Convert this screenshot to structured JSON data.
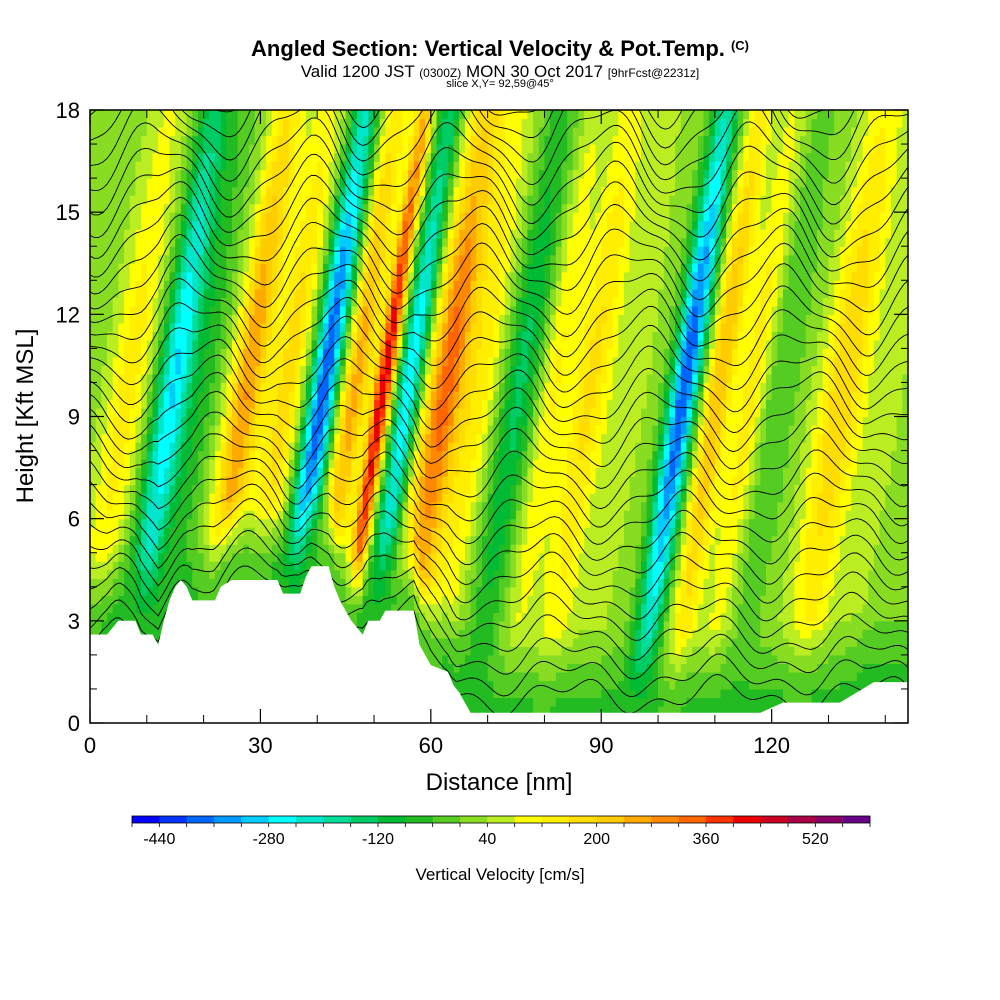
{
  "header": {
    "title": "Angled Section: Vertical Velocity & Pot.Temp.",
    "title_tag": "(C)",
    "valid_prefix": "Valid 1200 JST",
    "valid_utc": "(0300Z)",
    "valid_date": "MON 30 Oct 2017",
    "forecast_tag": "[9hrFcst@2231z]",
    "slice_text": "slice X,Y= 92,59@45°"
  },
  "chart_data": {
    "type": "heatmap",
    "xlabel": "Distance [nm]",
    "ylabel": "Height [Kft MSL]",
    "xlim": [
      0,
      144
    ],
    "ylim": [
      0,
      18
    ],
    "x_ticks": [
      0,
      30,
      60,
      90,
      120
    ],
    "y_ticks": [
      0,
      3,
      6,
      9,
      12,
      15,
      18
    ],
    "colorbar": {
      "title": "Vertical Velocity [cm/s]",
      "min": -480,
      "max": 600,
      "step": 40,
      "tick_values": [
        -440,
        -280,
        -120,
        40,
        200,
        360,
        520
      ],
      "colors": [
        "#0000ff",
        "#0033ff",
        "#0066ff",
        "#0099ff",
        "#00ccff",
        "#00ffff",
        "#00e6cc",
        "#00dd99",
        "#00cc66",
        "#00bb33",
        "#22bb22",
        "#55cc22",
        "#88dd22",
        "#bbee22",
        "#ffff00",
        "#ffee00",
        "#ffdd00",
        "#ffcc00",
        "#ffaa00",
        "#ff8800",
        "#ff6600",
        "#ff3300",
        "#ee0000",
        "#cc0022",
        "#aa0044",
        "#880066",
        "#660088"
      ]
    },
    "velocity_bands": [
      {
        "x": 5,
        "w": 3.5,
        "a": 120
      },
      {
        "x": 13,
        "w": 3,
        "a": -300
      },
      {
        "x": 18,
        "w": 3,
        "a": -80
      },
      {
        "x": 26,
        "w": 3,
        "a": 260
      },
      {
        "x": 33,
        "w": 3,
        "a": 160
      },
      {
        "x": 39.5,
        "w": 2.5,
        "a": -420
      },
      {
        "x": 45,
        "w": 2.5,
        "a": 240
      },
      {
        "x": 50,
        "w": 1.6,
        "a": 420
      },
      {
        "x": 54.5,
        "w": 2.2,
        "a": -300
      },
      {
        "x": 61,
        "w": 3.5,
        "a": 320
      },
      {
        "x": 67,
        "w": 3,
        "a": 110
      },
      {
        "x": 74,
        "w": 3,
        "a": -150
      },
      {
        "x": 80,
        "w": 2.5,
        "a": 100
      },
      {
        "x": 86.5,
        "w": 3.5,
        "a": 150
      },
      {
        "x": 94,
        "w": 3,
        "a": 40
      },
      {
        "x": 103,
        "w": 2.5,
        "a": -420
      },
      {
        "x": 109,
        "w": 2.5,
        "a": 220
      },
      {
        "x": 115,
        "w": 2.5,
        "a": 120
      },
      {
        "x": 120,
        "w": 3,
        "a": -60
      },
      {
        "x": 131,
        "w": 4,
        "a": 180
      },
      {
        "x": 139,
        "w": 3,
        "a": 40
      }
    ],
    "terrain": [
      [
        0,
        2.6
      ],
      [
        3,
        2.6
      ],
      [
        5,
        3.0
      ],
      [
        8,
        3.0
      ],
      [
        9,
        2.6
      ],
      [
        11,
        2.6
      ],
      [
        12,
        2.3
      ],
      [
        13,
        3.0
      ],
      [
        14,
        3.6
      ],
      [
        15,
        4.0
      ],
      [
        16,
        4.2
      ],
      [
        17,
        4.0
      ],
      [
        18,
        3.6
      ],
      [
        22,
        3.6
      ],
      [
        23,
        4.0
      ],
      [
        25,
        4.2
      ],
      [
        33,
        4.2
      ],
      [
        34,
        3.8
      ],
      [
        37,
        3.8
      ],
      [
        38,
        4.3
      ],
      [
        39,
        4.6
      ],
      [
        42,
        4.6
      ],
      [
        43,
        4.0
      ],
      [
        44,
        3.6
      ],
      [
        45,
        3.3
      ],
      [
        46,
        3.0
      ],
      [
        47,
        2.8
      ],
      [
        48,
        2.6
      ],
      [
        49,
        3.0
      ],
      [
        51,
        3.0
      ],
      [
        52,
        3.3
      ],
      [
        57,
        3.3
      ],
      [
        58,
        2.3
      ],
      [
        60,
        1.7
      ],
      [
        63,
        1.5
      ],
      [
        64,
        1.1
      ],
      [
        65,
        0.9
      ],
      [
        66,
        0.6
      ],
      [
        67,
        0.3
      ],
      [
        118,
        0.3
      ],
      [
        122,
        0.6
      ],
      [
        132,
        0.6
      ],
      [
        138,
        1.2
      ],
      [
        144,
        1.2
      ]
    ],
    "theta_contours": {
      "count": 34,
      "base_height": 0.8,
      "spacing": 0.58
    }
  }
}
